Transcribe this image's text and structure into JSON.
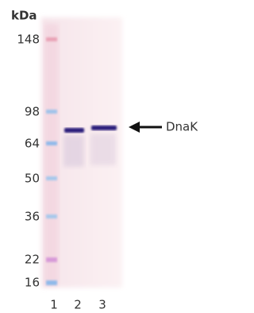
{
  "unit_label": "kDa",
  "markers": [
    "148",
    "98",
    "64",
    "50",
    "36",
    "22",
    "16"
  ],
  "lanes": [
    "1",
    "2",
    "3"
  ],
  "band_label": "DnaK"
}
